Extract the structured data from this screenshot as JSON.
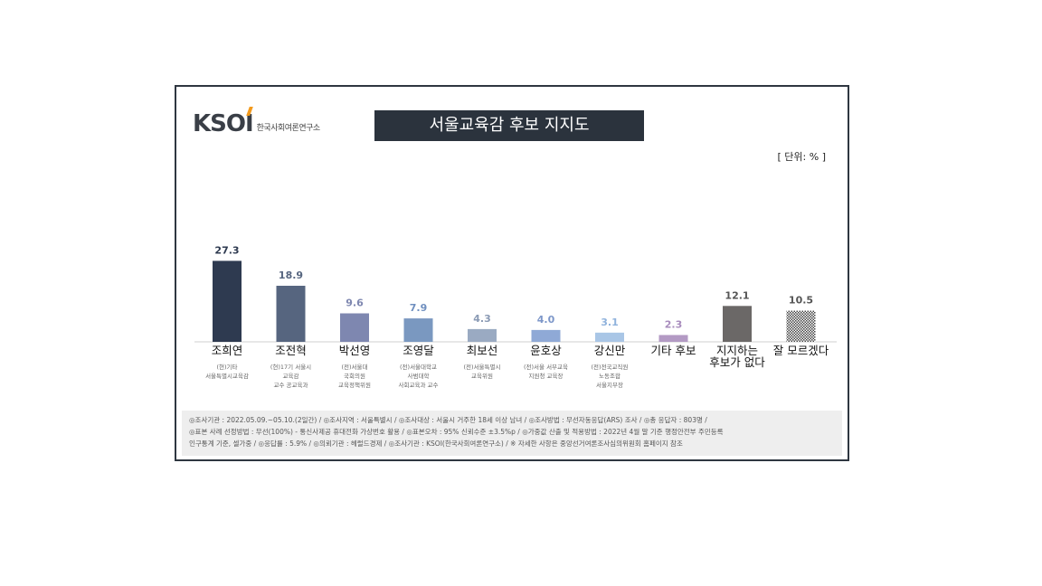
{
  "logo": {
    "mark": "KSOI",
    "text": "한국사회여론연구소"
  },
  "title": "서울교육감 후보 지지도",
  "unit": "[ 단위: % ]",
  "chart_data": {
    "type": "bar",
    "title": "서울교육감 후보 지지도",
    "unit": "%",
    "categories": [
      "조희연",
      "조전혁",
      "박선영",
      "조영달",
      "최보선",
      "윤호상",
      "강신만",
      "기타 후보",
      "지지하는 후보가 없다",
      "잘 모르겠다"
    ],
    "category_subs": [
      "(현)기타\n서울특별시교육감",
      "(현)17기 서울시\n교육감\n교수 공교육과",
      "(전)서울대\n국회의원\n교육정책위원",
      "(전)서울대학교\n사범대학\n사회교육과 교수",
      "(전)서울특별시\n교육위원",
      "(전)서울 서부교육\n지원청 교육장\n\u0000",
      "(전)전국교직원\n노동조합\n서울지부장",
      "",
      "",
      ""
    ],
    "values": [
      27.3,
      18.9,
      9.6,
      7.9,
      4.3,
      4.0,
      3.1,
      2.3,
      12.1,
      10.5
    ],
    "value_labels": [
      "27.3",
      "18.9",
      "9.6",
      "7.9",
      "4.3",
      "4.0",
      "3.1",
      "2.3",
      "12.1",
      "10.5"
    ],
    "colors": [
      "#2e3a50",
      "#56657f",
      "#7e87b0",
      "#7a98c0",
      "#9aaac2",
      "#8fa9d6",
      "#a9c6e6",
      "#b39ac4",
      "#6b6867",
      "pattern"
    ],
    "label_colors": [
      "#2e3a50",
      "#56657f",
      "#7e87b0",
      "#6f8fbf",
      "#8a9ab4",
      "#7d97c9",
      "#8fb2dc",
      "#a88cbd",
      "#555555",
      "#555555"
    ],
    "ylim": [
      0,
      30
    ]
  },
  "footer": {
    "line1": "◎조사기관 : 2022.05.09.~05.10.(2일간) / ◎조사지역 : 서울특별시 / ◎조사대상 : 서울시 거주한 18세 이상 남녀 / ◎조사방법 : 무선자동응답(ARS) 조사 / ◎총 응답자 : 803명 /",
    "line2": "◎표본 사례 선정방법 : 무선(100%) - 통신사제공 휴대전화 가상번호 활용 / ◎표본오차 : 95% 신뢰수준 ±3.5%p / ◎가중값 산출 및 적용방법 : 2022년 4월 말 기준 행정안전부 주민등록",
    "line3": "인구통계 기준, 셀가중 / ◎응답률 : 5.9% / ◎의뢰기관 : 헤럴드경제 / ◎조사기관 : KSOI(한국사회여론연구소) / ※ 자세한 사항은 중앙선거여론조사심의위원회 홈페이지 참조"
  }
}
